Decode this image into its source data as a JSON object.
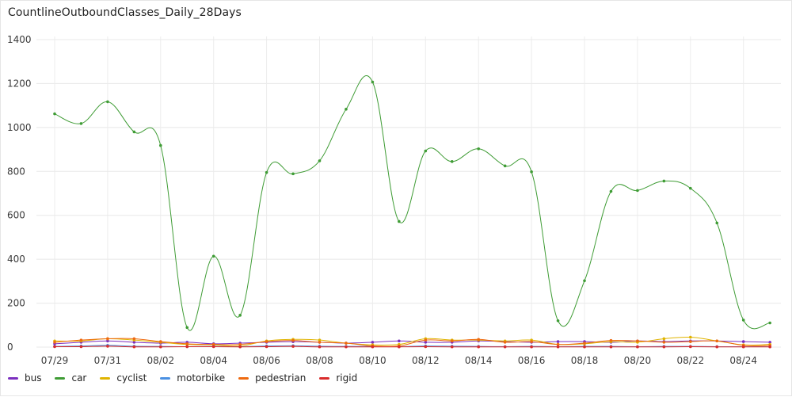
{
  "chart_data": {
    "type": "line",
    "title": "CountlineOutboundClasses_Daily_28Days",
    "xlabel": "",
    "ylabel": "",
    "ylim": [
      0,
      1400
    ],
    "y_ticks": [
      0,
      200,
      400,
      600,
      800,
      1000,
      1200,
      1400
    ],
    "x_tick_labels": [
      "07/29",
      "07/31",
      "08/02",
      "08/04",
      "08/06",
      "08/08",
      "08/10",
      "08/12",
      "08/14",
      "08/16",
      "08/18",
      "08/20",
      "08/22",
      "08/24"
    ],
    "x": [
      "07/29",
      "07/30",
      "07/31",
      "08/01",
      "08/02",
      "08/03",
      "08/04",
      "08/05",
      "08/06",
      "08/07",
      "08/08",
      "08/09",
      "08/10",
      "08/11",
      "08/12",
      "08/13",
      "08/14",
      "08/15",
      "08/16",
      "08/17",
      "08/18",
      "08/19",
      "08/20",
      "08/21",
      "08/22",
      "08/23",
      "08/24",
      "08/25"
    ],
    "grid": true,
    "legend_position": "bottom-left",
    "series": [
      {
        "name": "bus",
        "color": "#7b2fbf",
        "values": [
          15,
          22,
          28,
          22,
          18,
          22,
          15,
          18,
          22,
          25,
          22,
          18,
          22,
          28,
          22,
          22,
          28,
          25,
          22,
          25,
          25,
          22,
          28,
          25,
          28,
          28,
          25,
          22
        ]
      },
      {
        "name": "car",
        "color": "#3f9c35",
        "values": [
          1062,
          1018,
          1117,
          980,
          918,
          89,
          414,
          145,
          795,
          789,
          848,
          1083,
          1207,
          572,
          893,
          845,
          903,
          825,
          798,
          120,
          302,
          709,
          713,
          756,
          723,
          565,
          123,
          110
        ]
      },
      {
        "name": "cyclist",
        "color": "#e0b400",
        "values": [
          28,
          28,
          38,
          32,
          22,
          12,
          10,
          5,
          28,
          35,
          32,
          18,
          10,
          12,
          38,
          32,
          32,
          28,
          32,
          12,
          15,
          25,
          22,
          38,
          45,
          28,
          10,
          12
        ]
      },
      {
        "name": "motorbike",
        "color": "#4a90e2",
        "values": [
          3,
          5,
          8,
          4,
          3,
          2,
          3,
          2,
          5,
          6,
          4,
          3,
          3,
          2,
          5,
          4,
          3,
          2,
          3,
          2,
          3,
          3,
          2,
          3,
          3,
          2,
          2,
          2
        ]
      },
      {
        "name": "pedestrian",
        "color": "#ee6a10",
        "values": [
          22,
          32,
          38,
          38,
          25,
          15,
          12,
          12,
          25,
          30,
          22,
          18,
          5,
          5,
          32,
          28,
          35,
          22,
          25,
          12,
          18,
          30,
          28,
          22,
          25,
          28,
          8,
          8
        ]
      },
      {
        "name": "rigid",
        "color": "#d92b2b",
        "values": [
          2,
          2,
          4,
          1,
          1,
          2,
          2,
          1,
          2,
          3,
          1,
          1,
          1,
          1,
          2,
          1,
          1,
          1,
          1,
          1,
          1,
          1,
          1,
          1,
          2,
          1,
          1,
          1
        ]
      }
    ]
  }
}
